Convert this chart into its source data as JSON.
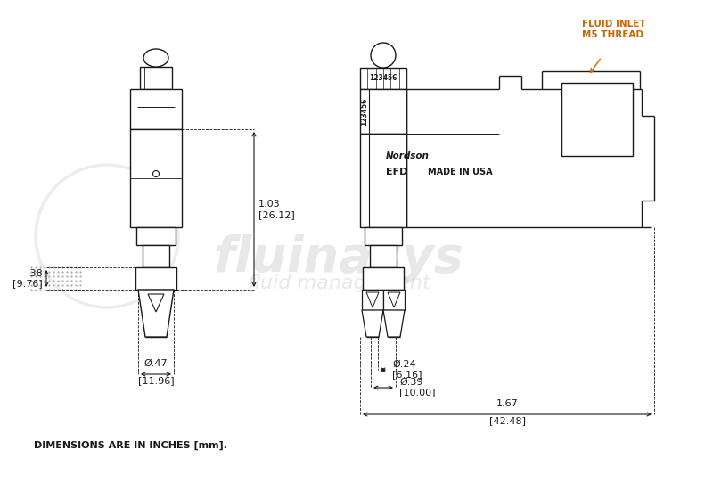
{
  "bg_color": "#ffffff",
  "line_color": "#1a1a1a",
  "watermark_color": "#cccccc",
  "label_color": "#cc6600",
  "fig_width": 8.0,
  "fig_height": 5.42,
  "note_text": "DIMENSIONS ARE IN INCHES [mm].",
  "fluid_inlet_text": "FLUID INLET\nM5 THREAD",
  "nordson_text": "Nordson",
  "efd_text": "EFD",
  "made_in_usa_text": "MADE IN USA",
  "watermark_line1": "fluinasys",
  "watermark_line2": "fluid management",
  "serial_top": "123456",
  "serial_side": "123456",
  "dim_103": "1.03",
  "dim_103mm": "[26.12]",
  "dim_038": ".38",
  "dim_038mm": "[9.76]",
  "dim_047": "Ø.47",
  "dim_047mm": "[11.96]",
  "dim_024": "Ø.24",
  "dim_024mm": "[6.16]",
  "dim_039": "Ø.39",
  "dim_039mm": "[10.00]",
  "dim_167": "1.67",
  "dim_167mm": "[42.48]"
}
